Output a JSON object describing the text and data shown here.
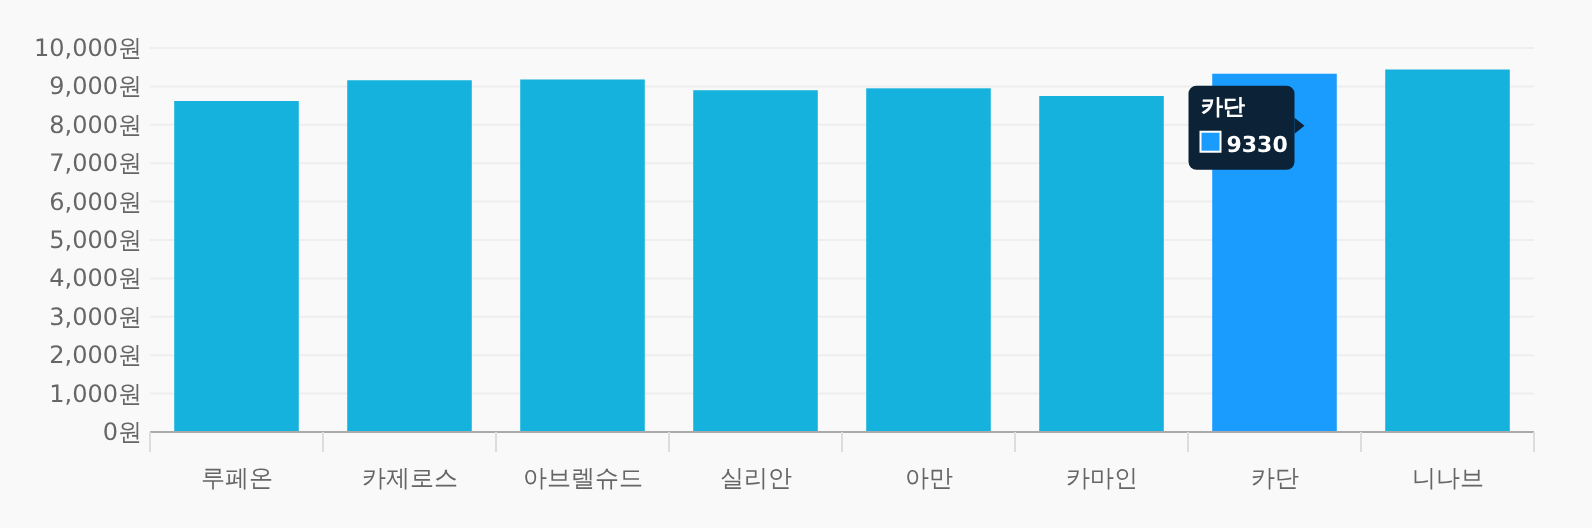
{
  "chart_data": {
    "type": "bar",
    "categories": [
      "루페온",
      "카제로스",
      "아브렐슈드",
      "실리안",
      "아만",
      "카마인",
      "카단",
      "니나브"
    ],
    "values": [
      8620,
      9160,
      9180,
      8900,
      8950,
      8750,
      9330,
      9440
    ],
    "colors": [
      "#14b2dc",
      "#14b2dc",
      "#14b2dc",
      "#14b2dc",
      "#14b2dc",
      "#14b2dc",
      "#1a9cff",
      "#14b2dc"
    ],
    "ylim": [
      0,
      10000
    ],
    "yticks": [
      {
        "value": 0,
        "label": "0원"
      },
      {
        "value": 1000,
        "label": "1,000원"
      },
      {
        "value": 2000,
        "label": "2,000원"
      },
      {
        "value": 3000,
        "label": "3,000원"
      },
      {
        "value": 4000,
        "label": "4,000원"
      },
      {
        "value": 5000,
        "label": "5,000원"
      },
      {
        "value": 6000,
        "label": "6,000원"
      },
      {
        "value": 7000,
        "label": "7,000원"
      },
      {
        "value": 8000,
        "label": "8,000원"
      },
      {
        "value": 9000,
        "label": "9,000원"
      },
      {
        "value": 10000,
        "label": "10,000원"
      }
    ],
    "grid": "y",
    "annotations": [
      {
        "text": "9330",
        "x": "카단",
        "y": 9330
      }
    ]
  }
}
